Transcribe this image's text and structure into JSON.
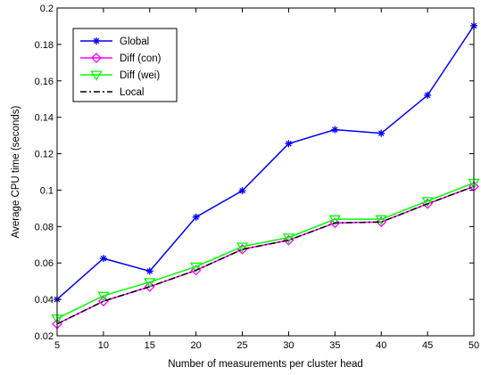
{
  "chart_data": {
    "type": "line",
    "title": "",
    "xlabel": "Number of measurements per cluster head",
    "ylabel": "Average CPU time (seconds)",
    "xlim": [
      5,
      50
    ],
    "ylim": [
      0.02,
      0.2
    ],
    "x": [
      5,
      10,
      15,
      20,
      25,
      30,
      35,
      40,
      45,
      50
    ],
    "xticks": [
      "5",
      "10",
      "15",
      "20",
      "25",
      "30",
      "35",
      "40",
      "45",
      "50"
    ],
    "yticks": [
      "0.02",
      "0.04",
      "0.06",
      "0.08",
      "0.1",
      "0.12",
      "0.14",
      "0.16",
      "0.18",
      "0.2"
    ],
    "grid": false,
    "legend_position": "top-left",
    "series": [
      {
        "name": "Global",
        "color": "#0000ff",
        "marker": "asterisk",
        "line": "solid",
        "values": [
          0.04,
          0.0625,
          0.0555,
          0.0852,
          0.0997,
          0.1255,
          0.1332,
          0.1312,
          0.1521,
          0.1903
        ]
      },
      {
        "name": "Diff (con)",
        "color": "#ff00ff",
        "marker": "diamond",
        "line": "solid",
        "values": [
          0.0265,
          0.039,
          0.047,
          0.056,
          0.0675,
          0.0725,
          0.082,
          0.0825,
          0.0925,
          0.102
        ]
      },
      {
        "name": "Diff (wei)",
        "color": "#00ff00",
        "marker": "triangle-down",
        "line": "solid",
        "values": [
          0.0295,
          0.042,
          0.0495,
          0.058,
          0.069,
          0.074,
          0.084,
          0.084,
          0.094,
          0.104
        ]
      },
      {
        "name": "Local",
        "color": "#000000",
        "marker": "none",
        "line": "dashdot",
        "values": [
          0.0265,
          0.039,
          0.047,
          0.056,
          0.0675,
          0.0725,
          0.082,
          0.0825,
          0.0925,
          0.102
        ]
      }
    ]
  }
}
